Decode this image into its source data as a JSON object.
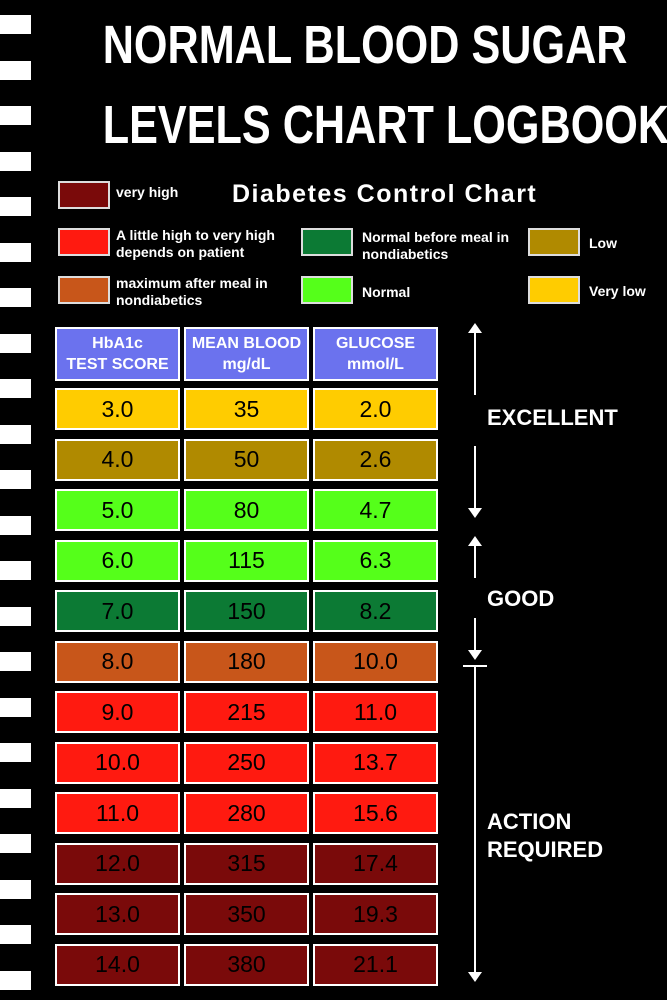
{
  "title": {
    "line1": "NORMAL BLOOD SUGAR",
    "line2": "LEVELS CHART LOGBOOK"
  },
  "subtitle": "Diabetes Control Chart",
  "legend": [
    {
      "label": "very high",
      "color": "#7a0a0a"
    },
    {
      "label": "A little high to very high depends on patient",
      "color": "#ff1a10"
    },
    {
      "label": "maximum after meal in nondiabetics",
      "color": "#c8561a"
    },
    {
      "label": "Normal before meal in nondiabetics",
      "color": "#0c7a34"
    },
    {
      "label": "Normal",
      "color": "#55ff1a"
    },
    {
      "label": "Low",
      "color": "#b08a00"
    },
    {
      "label": "Very low",
      "color": "#ffcc00"
    }
  ],
  "table": {
    "headers": [
      [
        "HbA1c",
        "TEST SCORE"
      ],
      [
        "MEAN BLOOD",
        "mg/dL"
      ],
      [
        "GLUCOSE",
        "mmol/L"
      ]
    ],
    "rows": [
      {
        "cells": [
          "3.0",
          "35",
          "2.0"
        ],
        "color": "#ffcc00"
      },
      {
        "cells": [
          "4.0",
          "50",
          "2.6"
        ],
        "color": "#b08a00"
      },
      {
        "cells": [
          "5.0",
          "80",
          "4.7"
        ],
        "color": "#55ff1a"
      },
      {
        "cells": [
          "6.0",
          "115",
          "6.3"
        ],
        "color": "#55ff1a"
      },
      {
        "cells": [
          "7.0",
          "150",
          "8.2"
        ],
        "color": "#0c7a34"
      },
      {
        "cells": [
          "8.0",
          "180",
          "10.0"
        ],
        "color": "#c8561a"
      },
      {
        "cells": [
          "9.0",
          "215",
          "11.0"
        ],
        "color": "#ff1a10"
      },
      {
        "cells": [
          "10.0",
          "250",
          "13.7"
        ],
        "color": "#ff1a10"
      },
      {
        "cells": [
          "11.0",
          "280",
          "15.6"
        ],
        "color": "#ff1a10"
      },
      {
        "cells": [
          "12.0",
          "315",
          "17.4"
        ],
        "color": "#7a0a0a"
      },
      {
        "cells": [
          "13.0",
          "350",
          "19.3"
        ],
        "color": "#7a0a0a"
      },
      {
        "cells": [
          "14.0",
          "380",
          "21.1"
        ],
        "color": "#7a0a0a"
      }
    ]
  },
  "zones": {
    "excellent": "EXCELLENT",
    "good": "GOOD",
    "action": [
      "ACTION",
      "REQUIRED"
    ]
  }
}
